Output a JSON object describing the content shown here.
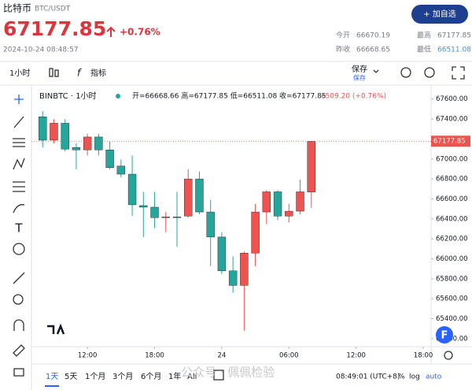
{
  "header": {
    "name": "比特币",
    "pair": "BTC/USDT",
    "price": "67177.85",
    "change": "+0.76%",
    "datetime": "2024-10-24 08:48:57",
    "button": "+ 加自选",
    "stats": [
      {
        "label": "今开",
        "value": "66670.19"
      },
      {
        "label": "最高",
        "value": "67177.85"
      },
      {
        "label": "昨收",
        "value": "66668.65"
      },
      {
        "label": "最低",
        "value": "66511.08"
      }
    ]
  },
  "toolbar": {
    "interval": "1小时",
    "indicators": "指标",
    "save": "保存",
    "save_sub": "保存"
  },
  "chart_data": {
    "type": "candlestick",
    "legend": {
      "symbol": "BINBTC · 1小时",
      "ohlc": "开=66668.66 高=67177.85 低=66511.08 收=67177.85",
      "change": "+509.20 (+0.76%)"
    },
    "x": [
      8,
      9,
      10,
      11,
      12,
      13,
      14,
      15,
      16,
      17,
      18,
      19,
      20,
      21,
      22,
      23,
      24,
      25,
      26,
      27,
      28,
      29,
      30,
      31,
      32
    ],
    "open": [
      67422,
      67188,
      67358,
      67115,
      67091,
      67220,
      67091,
      66929,
      66848,
      66533,
      66517,
      66412,
      66420,
      66428,
      66800,
      66469,
      66218,
      65879,
      65733,
      66057,
      66469,
      66671,
      66428,
      66477,
      66668.66
    ],
    "high": [
      67479,
      67398,
      67398,
      67156,
      67253,
      67253,
      67172,
      66994,
      67034,
      66671,
      66671,
      66469,
      66671,
      66897,
      66873,
      66590,
      66267,
      66024,
      66073,
      66550,
      66687,
      66687,
      66550,
      66792,
      67177.85
    ],
    "low": [
      67115,
      67156,
      67075,
      66897,
      67034,
      67034,
      66897,
      66816,
      66428,
      66218,
      66307,
      66267,
      66121,
      66412,
      66444,
      65927,
      65847,
      65661,
      65281,
      65927,
      66347,
      66388,
      66364,
      66444,
      66511.08
    ],
    "close": [
      67188,
      67358,
      67099,
      67091,
      67220,
      67091,
      66913,
      66848,
      66541,
      66517,
      66412,
      66420,
      66412,
      66800,
      66469,
      66218,
      65879,
      65733,
      66057,
      66469,
      66671,
      66428,
      66477,
      66671,
      67177.85
    ],
    "up_color": "#ef5350",
    "down_color": "#26a69a",
    "xlim": [
      7,
      42.7
    ],
    "xticks": [
      {
        "value": 12,
        "label": "12:00"
      },
      {
        "value": 18,
        "label": "18:00"
      },
      {
        "value": 24,
        "label": "24"
      },
      {
        "value": 30,
        "label": "06:00"
      },
      {
        "value": 36,
        "label": "12:00"
      },
      {
        "value": 42,
        "label": "18:00"
      }
    ],
    "ylim": [
      65120,
      67740
    ],
    "yticks": [
      {
        "value": 65200,
        "label": "65200.00"
      },
      {
        "value": 65400,
        "label": "65400.00"
      },
      {
        "value": 65600,
        "label": "65600.00"
      },
      {
        "value": 65800,
        "label": "65800.00"
      },
      {
        "value": 66000,
        "label": "66000.00"
      },
      {
        "value": 66200,
        "label": "66200.00"
      },
      {
        "value": 66400,
        "label": "66400.00"
      },
      {
        "value": 66600,
        "label": "66600.00"
      },
      {
        "value": 66800,
        "label": "66800.00"
      },
      {
        "value": 67000,
        "label": "67000.00"
      },
      {
        "value": 67200,
        "label": "67200.00"
      },
      {
        "value": 67400,
        "label": "67400.00"
      },
      {
        "value": 67600,
        "label": "67600.00"
      }
    ],
    "grid": false
  },
  "bottom_bar": {
    "ranges": [
      "1天",
      "5天",
      "1个月",
      "3个月",
      "6个月",
      "1年",
      "All"
    ],
    "time": "08:49:01 (UTC+8)",
    "percent": "%",
    "log": "log",
    "auto": "auto"
  },
  "watermark": "公众号 · 佩佩检验"
}
